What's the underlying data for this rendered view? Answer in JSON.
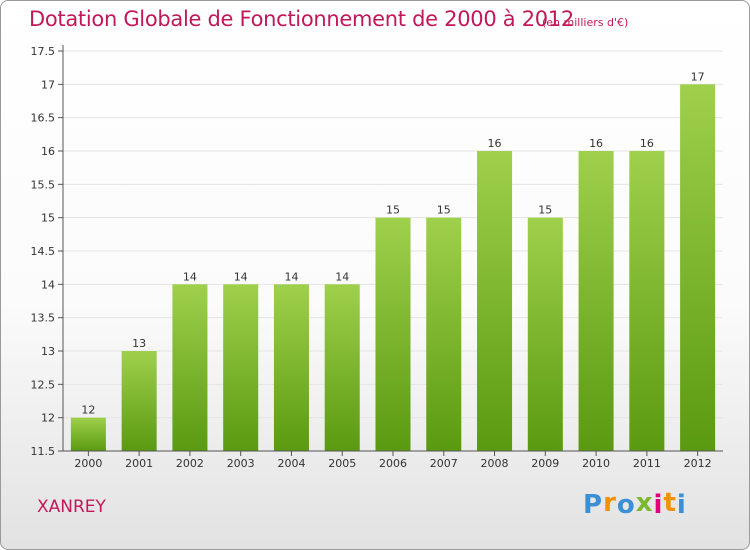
{
  "header": {
    "title": "Dotation Globale de Fonctionnement de 2000 à 2012",
    "unit": "(en milliers d'€)"
  },
  "footer": {
    "commune": "XANREY",
    "logo_letters": [
      "P",
      "r",
      "o",
      "x",
      "i",
      "t",
      "i"
    ],
    "logo_colors": [
      "#3a8fd6",
      "#f39200",
      "#3a8fd6",
      "#7cb82f",
      "#e2007a",
      "#f39200",
      "#3a8fd6"
    ]
  },
  "colors": {
    "bar_top": "#9fd04c",
    "bar_bottom": "#5a9a10",
    "axis": "#555555",
    "grid": "#e4e4e4",
    "accent": "#c2185b"
  },
  "chart_data": {
    "type": "bar",
    "title": "Dotation Globale de Fonctionnement de 2000 à 2012",
    "categories": [
      "2000",
      "2001",
      "2002",
      "2003",
      "2004",
      "2005",
      "2006",
      "2007",
      "2008",
      "2009",
      "2010",
      "2011",
      "2012"
    ],
    "values": [
      12,
      13,
      14,
      14,
      14,
      14,
      15,
      15,
      16,
      15,
      16,
      16,
      17
    ],
    "labels": [
      "12",
      "13",
      "14",
      "14",
      "14",
      "14",
      "15",
      "15",
      "16",
      "15",
      "16",
      "16",
      "17"
    ],
    "ylim": [
      11.5,
      17.5
    ],
    "yticks": [
      11.5,
      12,
      12.5,
      13,
      13.5,
      14,
      14.5,
      15,
      15.5,
      16,
      16.5,
      17,
      17.5
    ],
    "ytick_labels": [
      "11.5",
      "12",
      "12.5",
      "13",
      "13.5",
      "14",
      "14.5",
      "15",
      "15.5",
      "16",
      "16.5",
      "17",
      "17.5"
    ],
    "grid": true,
    "legend": "none"
  }
}
